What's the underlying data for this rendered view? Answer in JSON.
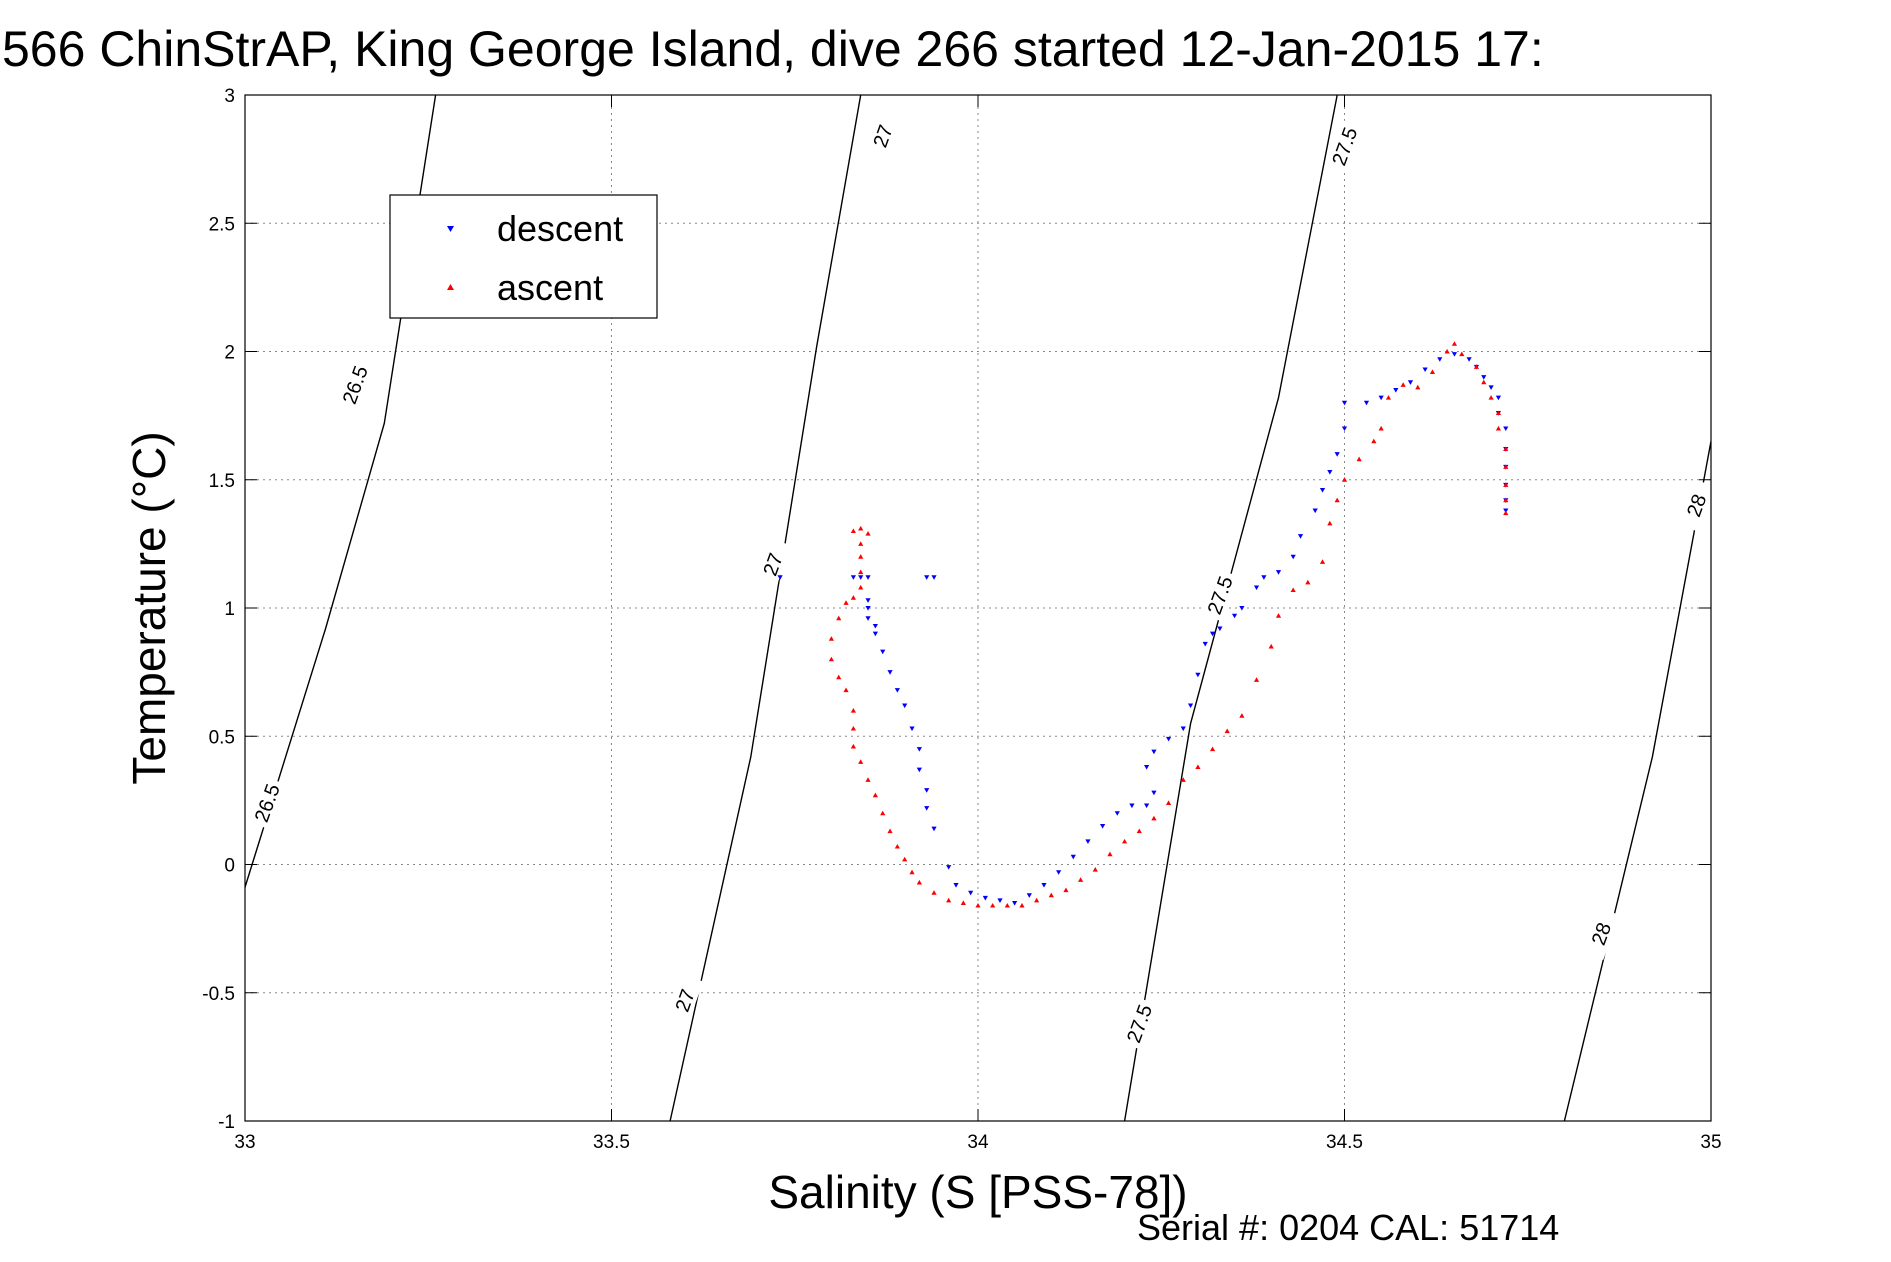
{
  "chart_data": {
    "type": "scatter",
    "title": "566 ChinStrAP, King George Island, dive 266 started 12-Jan-2015 17:",
    "xlabel": "Salinity (S [PSS-78])",
    "ylabel": "Temperature (°C)",
    "xlim": [
      33,
      35
    ],
    "ylim": [
      -1,
      3
    ],
    "grid": true,
    "legend_position": "top-left",
    "x_ticks": [
      "33",
      "33.5",
      "34",
      "34.5",
      "35"
    ],
    "y_ticks": [
      "-1",
      "-0.5",
      "0",
      "0.5",
      "1",
      "1.5",
      "2",
      "2.5",
      "3"
    ],
    "footer": "Serial #: 0204  CAL: 51714",
    "isopycnals": [
      {
        "label": "26.5",
        "points": [
          [
            32.99,
            -0.18
          ],
          [
            33.11,
            0.92
          ],
          [
            33.19,
            1.72
          ],
          [
            33.26,
            3.0
          ]
        ]
      },
      {
        "label": "27",
        "points": [
          [
            33.58,
            -1.0
          ],
          [
            33.69,
            0.42
          ],
          [
            33.78,
            2.02
          ],
          [
            33.84,
            3.0
          ]
        ]
      },
      {
        "label": "27.5",
        "points": [
          [
            34.2,
            -1.0
          ],
          [
            34.29,
            0.55
          ],
          [
            34.41,
            1.82
          ],
          [
            34.49,
            3.0
          ]
        ]
      },
      {
        "label": "28",
        "points": [
          [
            34.8,
            -1.0
          ],
          [
            34.92,
            0.42
          ],
          [
            35.0,
            1.65
          ]
        ]
      }
    ],
    "contour_labels": [
      {
        "text": "26.5",
        "x": 33.15,
        "y": 1.87
      },
      {
        "text": "26.5",
        "x": 33.03,
        "y": 0.24
      },
      {
        "text": "27",
        "x": 33.87,
        "y": 2.84
      },
      {
        "text": "27",
        "x": 33.72,
        "y": 1.17
      },
      {
        "text": "27",
        "x": 33.6,
        "y": -0.53
      },
      {
        "text": "27.5",
        "x": 34.5,
        "y": 2.8
      },
      {
        "text": "27.5",
        "x": 34.33,
        "y": 1.05
      },
      {
        "text": "27.5",
        "x": 34.22,
        "y": -0.62
      },
      {
        "text": "28",
        "x": 34.98,
        "y": 1.4
      },
      {
        "text": "28",
        "x": 34.85,
        "y": -0.27
      }
    ],
    "series": [
      {
        "name": "descent",
        "color": "#0000ff",
        "marker": "triangle-down",
        "points": [
          [
            33.73,
            1.12
          ],
          [
            33.83,
            1.12
          ],
          [
            33.84,
            1.12
          ],
          [
            33.85,
            1.12
          ],
          [
            33.93,
            1.12
          ],
          [
            33.94,
            1.12
          ],
          [
            33.85,
            1.03
          ],
          [
            33.85,
            1.0
          ],
          [
            33.85,
            0.96
          ],
          [
            33.86,
            0.93
          ],
          [
            33.86,
            0.9
          ],
          [
            33.87,
            0.83
          ],
          [
            33.88,
            0.75
          ],
          [
            33.89,
            0.68
          ],
          [
            33.9,
            0.62
          ],
          [
            33.91,
            0.53
          ],
          [
            33.92,
            0.45
          ],
          [
            33.92,
            0.37
          ],
          [
            33.93,
            0.29
          ],
          [
            33.93,
            0.22
          ],
          [
            33.94,
            0.14
          ],
          [
            33.96,
            -0.01
          ],
          [
            33.97,
            -0.08
          ],
          [
            33.99,
            -0.11
          ],
          [
            34.01,
            -0.13
          ],
          [
            34.03,
            -0.14
          ],
          [
            34.05,
            -0.15
          ],
          [
            34.07,
            -0.12
          ],
          [
            34.09,
            -0.08
          ],
          [
            34.11,
            -0.03
          ],
          [
            34.13,
            0.03
          ],
          [
            34.15,
            0.09
          ],
          [
            34.17,
            0.15
          ],
          [
            34.19,
            0.2
          ],
          [
            34.21,
            0.23
          ],
          [
            34.23,
            0.23
          ],
          [
            34.24,
            0.28
          ],
          [
            34.23,
            0.38
          ],
          [
            34.24,
            0.44
          ],
          [
            34.26,
            0.49
          ],
          [
            34.28,
            0.53
          ],
          [
            34.29,
            0.62
          ],
          [
            34.3,
            0.74
          ],
          [
            34.31,
            0.86
          ],
          [
            34.32,
            0.9
          ],
          [
            34.33,
            0.92
          ],
          [
            34.35,
            0.97
          ],
          [
            34.36,
            1.0
          ],
          [
            34.38,
            1.08
          ],
          [
            34.39,
            1.12
          ],
          [
            34.41,
            1.14
          ],
          [
            34.43,
            1.2
          ],
          [
            34.44,
            1.28
          ],
          [
            34.46,
            1.38
          ],
          [
            34.47,
            1.46
          ],
          [
            34.48,
            1.53
          ],
          [
            34.49,
            1.6
          ],
          [
            34.5,
            1.7
          ],
          [
            34.5,
            1.8
          ],
          [
            34.53,
            1.8
          ],
          [
            34.55,
            1.82
          ],
          [
            34.57,
            1.85
          ],
          [
            34.59,
            1.88
          ],
          [
            34.61,
            1.93
          ],
          [
            34.63,
            1.97
          ],
          [
            34.65,
            1.99
          ],
          [
            34.67,
            1.97
          ],
          [
            34.68,
            1.94
          ],
          [
            34.69,
            1.9
          ],
          [
            34.7,
            1.86
          ],
          [
            34.71,
            1.82
          ],
          [
            34.71,
            1.76
          ],
          [
            34.72,
            1.7
          ],
          [
            34.72,
            1.62
          ],
          [
            34.72,
            1.55
          ],
          [
            34.72,
            1.48
          ],
          [
            34.72,
            1.42
          ],
          [
            34.72,
            1.38
          ]
        ]
      },
      {
        "name": "ascent",
        "color": "#ff0000",
        "marker": "triangle-up",
        "points": [
          [
            33.83,
            1.3
          ],
          [
            33.84,
            1.31
          ],
          [
            33.85,
            1.29
          ],
          [
            33.84,
            1.25
          ],
          [
            33.84,
            1.2
          ],
          [
            33.84,
            1.14
          ],
          [
            33.84,
            1.08
          ],
          [
            33.83,
            1.04
          ],
          [
            33.82,
            1.02
          ],
          [
            33.81,
            0.96
          ],
          [
            33.8,
            0.88
          ],
          [
            33.8,
            0.8
          ],
          [
            33.81,
            0.73
          ],
          [
            33.82,
            0.68
          ],
          [
            33.83,
            0.6
          ],
          [
            33.83,
            0.53
          ],
          [
            33.83,
            0.46
          ],
          [
            33.84,
            0.4
          ],
          [
            33.85,
            0.33
          ],
          [
            33.86,
            0.27
          ],
          [
            33.87,
            0.2
          ],
          [
            33.88,
            0.13
          ],
          [
            33.89,
            0.07
          ],
          [
            33.9,
            0.02
          ],
          [
            33.91,
            -0.03
          ],
          [
            33.92,
            -0.07
          ],
          [
            33.94,
            -0.11
          ],
          [
            33.96,
            -0.14
          ],
          [
            33.98,
            -0.15
          ],
          [
            34.0,
            -0.16
          ],
          [
            34.02,
            -0.16
          ],
          [
            34.04,
            -0.16
          ],
          [
            34.06,
            -0.16
          ],
          [
            34.08,
            -0.14
          ],
          [
            34.1,
            -0.12
          ],
          [
            34.12,
            -0.1
          ],
          [
            34.14,
            -0.06
          ],
          [
            34.16,
            -0.02
          ],
          [
            34.18,
            0.04
          ],
          [
            34.2,
            0.09
          ],
          [
            34.22,
            0.13
          ],
          [
            34.24,
            0.18
          ],
          [
            34.26,
            0.24
          ],
          [
            34.28,
            0.33
          ],
          [
            34.3,
            0.38
          ],
          [
            34.32,
            0.45
          ],
          [
            34.34,
            0.52
          ],
          [
            34.36,
            0.58
          ],
          [
            34.38,
            0.72
          ],
          [
            34.4,
            0.85
          ],
          [
            34.41,
            0.97
          ],
          [
            34.43,
            1.07
          ],
          [
            34.45,
            1.1
          ],
          [
            34.47,
            1.18
          ],
          [
            34.48,
            1.33
          ],
          [
            34.49,
            1.42
          ],
          [
            34.5,
            1.5
          ],
          [
            34.52,
            1.58
          ],
          [
            34.54,
            1.65
          ],
          [
            34.55,
            1.7
          ],
          [
            34.56,
            1.82
          ],
          [
            34.58,
            1.87
          ],
          [
            34.6,
            1.86
          ],
          [
            34.62,
            1.92
          ],
          [
            34.64,
            2.0
          ],
          [
            34.65,
            2.03
          ],
          [
            34.66,
            1.99
          ],
          [
            34.68,
            1.94
          ],
          [
            34.69,
            1.88
          ],
          [
            34.7,
            1.82
          ],
          [
            34.71,
            1.76
          ],
          [
            34.71,
            1.7
          ],
          [
            34.72,
            1.62
          ],
          [
            34.72,
            1.55
          ],
          [
            34.72,
            1.48
          ],
          [
            34.72,
            1.42
          ],
          [
            34.72,
            1.37
          ]
        ]
      }
    ]
  }
}
